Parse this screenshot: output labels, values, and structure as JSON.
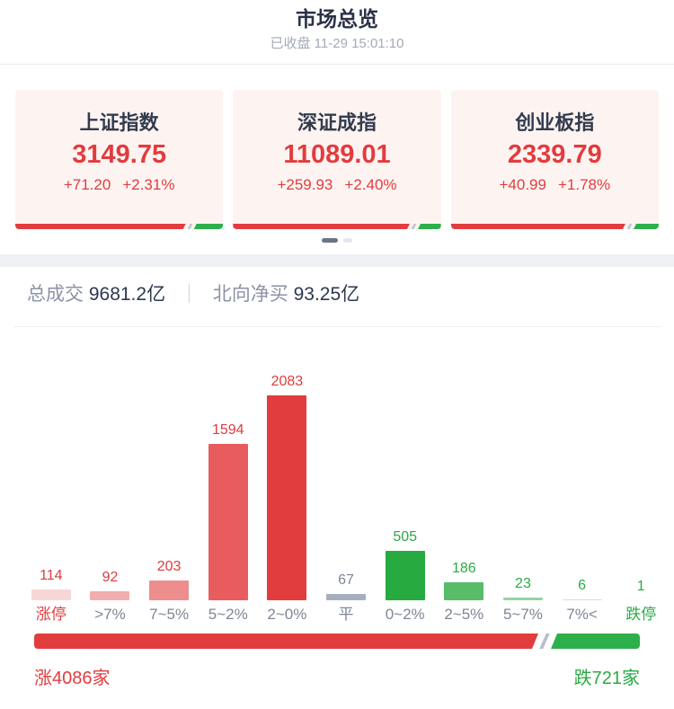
{
  "header": {
    "title": "市场总览",
    "status_line": "已收盘 11-29 15:01:10"
  },
  "indices": [
    {
      "name": "上证指数",
      "value": "3149.75",
      "change": "+71.20",
      "change_pct": "+2.31%",
      "red_ratio": 0.82
    },
    {
      "name": "深证成指",
      "value": "11089.01",
      "change": "+259.93",
      "change_pct": "+2.40%",
      "red_ratio": 0.85
    },
    {
      "name": "创业板指",
      "value": "2339.79",
      "change": "+40.99",
      "change_pct": "+1.78%",
      "red_ratio": 0.84
    }
  ],
  "turnover": {
    "label": "总成交",
    "value": "9681.2亿",
    "separator": "｜",
    "north_label": "北向净买",
    "north_value": "93.25亿"
  },
  "chart_data": {
    "type": "bar",
    "categories": [
      "涨停",
      ">7%",
      "7~5%",
      "5~2%",
      "2~0%",
      "平",
      "0~2%",
      "2~5%",
      "5~7%",
      "7%<",
      "跌停"
    ],
    "values": [
      114,
      92,
      203,
      1594,
      2083,
      67,
      505,
      186,
      23,
      6,
      1
    ],
    "groups": [
      "up",
      "up",
      "up",
      "up",
      "up",
      "flat",
      "down",
      "down",
      "down",
      "down",
      "down"
    ],
    "bar_colors": [
      "#f7d6d6",
      "#f2aeae",
      "#ee8d8d",
      "#e95c5e",
      "#e13c3e",
      "#a7aebc",
      "#27aa3f",
      "#58bc69",
      "#94d39f",
      "#c9e9cf",
      "#2aab44"
    ],
    "ylim": [
      0,
      2083
    ],
    "grid": false,
    "legend": "none",
    "special_label_colors": {
      "涨停": "#e03b3d",
      "跌停": "#2aab44"
    }
  },
  "summary": {
    "advancers": 4086,
    "decliners": 721,
    "advancers_label": "涨4086家",
    "decliners_label": "跌721家"
  },
  "colors": {
    "red_text": "#e03b3d",
    "green_text": "#2aab44",
    "gray_text": "#7d8695",
    "red_bar": "#e23c3e",
    "green_bar": "#2db04b"
  }
}
